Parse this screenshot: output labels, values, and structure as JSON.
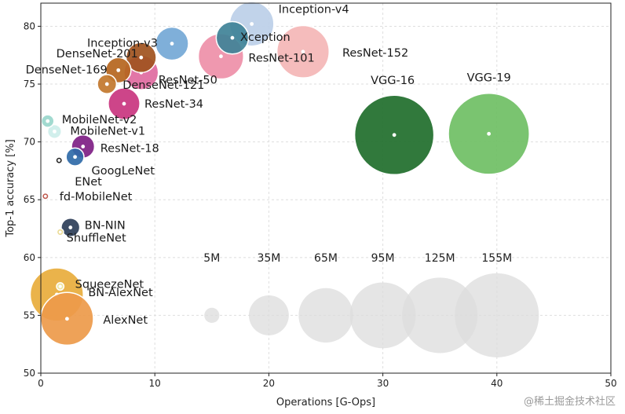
{
  "chart_data": {
    "type": "scatter",
    "variant": "bubble",
    "xlabel": "Operations [G-Ops]",
    "ylabel": "Top-1 accuracy [%]",
    "xlim": [
      0,
      50
    ],
    "ylim": [
      50,
      82
    ],
    "xticks": [
      0,
      10,
      20,
      30,
      40,
      50
    ],
    "yticks": [
      50,
      55,
      60,
      65,
      70,
      75,
      80
    ],
    "grid": true,
    "size_unit": "M parameters",
    "series": [
      {
        "name": "Inception-v4",
        "x": 18.5,
        "y": 80.2,
        "params": 43,
        "color": "#bccfe8"
      },
      {
        "name": "Xception",
        "x": 16.8,
        "y": 79.0,
        "params": 23,
        "color": "#3f8297"
      },
      {
        "name": "Inception-v3",
        "x": 11.5,
        "y": 78.5,
        "params": 24,
        "color": "#74a8d6"
      },
      {
        "name": "ResNet-152",
        "x": 23.0,
        "y": 77.8,
        "params": 60,
        "color": "#f4b6b6"
      },
      {
        "name": "ResNet-101",
        "x": 15.8,
        "y": 77.4,
        "params": 45,
        "color": "#ee8fa8"
      },
      {
        "name": "ResNet-50",
        "x": 8.8,
        "y": 76.0,
        "params": 26,
        "color": "#e06aa0"
      },
      {
        "name": "DenseNet-201",
        "x": 8.8,
        "y": 77.3,
        "params": 20,
        "color": "#a0521e"
      },
      {
        "name": "DenseNet-169",
        "x": 6.8,
        "y": 76.2,
        "params": 14,
        "color": "#b5651d"
      },
      {
        "name": "DenseNet-121",
        "x": 5.8,
        "y": 75.0,
        "params": 8,
        "color": "#c2772c"
      },
      {
        "name": "ResNet-34",
        "x": 7.3,
        "y": 73.3,
        "params": 22,
        "color": "#c9357f"
      },
      {
        "name": "VGG-16",
        "x": 31.0,
        "y": 70.6,
        "params": 138,
        "color": "#1f6e2b"
      },
      {
        "name": "VGG-19",
        "x": 39.3,
        "y": 70.7,
        "params": 144,
        "color": "#6fbf64"
      },
      {
        "name": "MobileNet-v2",
        "x": 0.6,
        "y": 71.8,
        "params": 3.5,
        "color": "#9ad7cc"
      },
      {
        "name": "MobileNet-v1",
        "x": 1.2,
        "y": 70.9,
        "params": 4.2,
        "color": "#cdeeea"
      },
      {
        "name": "ResNet-18",
        "x": 3.7,
        "y": 69.6,
        "params": 11.7,
        "color": "#7e1e84"
      },
      {
        "name": "GoogLeNet",
        "x": 3.0,
        "y": 68.7,
        "params": 7,
        "color": "#2f6aa8"
      },
      {
        "name": "ENet",
        "x": 1.6,
        "y": 68.4,
        "params": 0.4,
        "color": "#111111"
      },
      {
        "name": "fd-MobileNet",
        "x": 0.4,
        "y": 65.3,
        "params": 0.6,
        "color": "#b84a3e"
      },
      {
        "name": "BN-NIN",
        "x": 2.6,
        "y": 62.6,
        "params": 7.6,
        "color": "#2d3e58"
      },
      {
        "name": "ShuffleNet",
        "x": 1.7,
        "y": 62.2,
        "params": 1.0,
        "color": "#e9d88c"
      },
      {
        "name": "SqueezeNet",
        "x": 1.7,
        "y": 57.5,
        "params": 1.2,
        "color": "#eee9a8"
      },
      {
        "name": "BN-AlexNet",
        "x": 1.4,
        "y": 56.8,
        "params": 62,
        "color": "#e8ad3c"
      },
      {
        "name": "AlexNet",
        "x": 2.3,
        "y": 54.7,
        "params": 61,
        "color": "#ed9a4a"
      }
    ],
    "size_legend": [
      {
        "label": "5M",
        "x": 15,
        "y": 55,
        "params": 5
      },
      {
        "label": "35M",
        "x": 20,
        "y": 55,
        "params": 35
      },
      {
        "label": "65M",
        "x": 25,
        "y": 55,
        "params": 65
      },
      {
        "label": "95M",
        "x": 30,
        "y": 55,
        "params": 95
      },
      {
        "label": "125M",
        "x": 35,
        "y": 55,
        "params": 125
      },
      {
        "label": "155M",
        "x": 40,
        "y": 55,
        "params": 155
      }
    ]
  },
  "watermark": "@稀土掘金技术社区"
}
